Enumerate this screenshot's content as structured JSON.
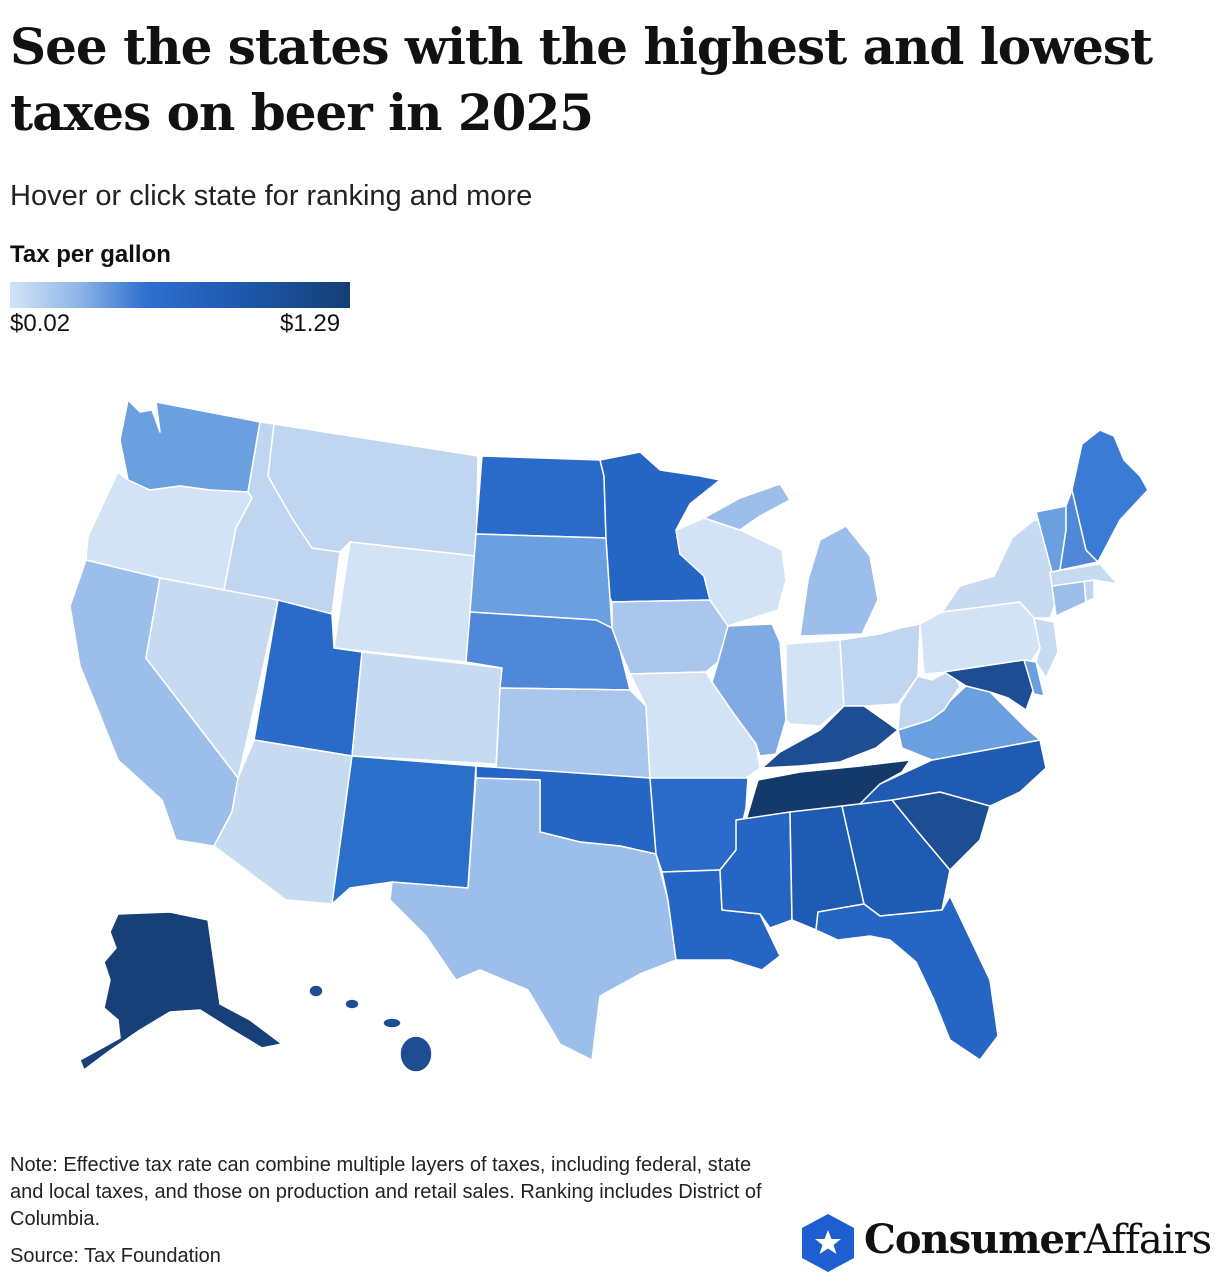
{
  "header": {
    "title": "See the states with the highest and lowest taxes on beer in 2025",
    "subtitle": "Hover or click state for ranking and more"
  },
  "legend": {
    "title": "Tax per gallon",
    "min_label": "$0.02",
    "max_label": "$1.29",
    "colors": [
      "#d3e3f6",
      "#8fb6e8",
      "#2f6fcf",
      "#1f5bb3",
      "#143e74"
    ]
  },
  "states": [
    {
      "id": "WA",
      "color": "#6a9fe0"
    },
    {
      "id": "OR",
      "color": "#d3e3f6"
    },
    {
      "id": "CA",
      "color": "#9cbeea"
    },
    {
      "id": "ID",
      "color": "#bfd5f0"
    },
    {
      "id": "NV",
      "color": "#c6daf2"
    },
    {
      "id": "MT",
      "color": "#bfd5f0"
    },
    {
      "id": "WY",
      "color": "#d3e3f6"
    },
    {
      "id": "UT",
      "color": "#2a6bc9"
    },
    {
      "id": "AZ",
      "color": "#c6daf2"
    },
    {
      "id": "CO",
      "color": "#c6daf2"
    },
    {
      "id": "NM",
      "color": "#2a6fca"
    },
    {
      "id": "ND",
      "color": "#2a6bc9"
    },
    {
      "id": "SD",
      "color": "#6a9fe0"
    },
    {
      "id": "NE",
      "color": "#4f88d8"
    },
    {
      "id": "KS",
      "color": "#a9c7ec"
    },
    {
      "id": "OK",
      "color": "#2566c4"
    },
    {
      "id": "TX",
      "color": "#9cbeea"
    },
    {
      "id": "MN",
      "color": "#2566c4"
    },
    {
      "id": "IA",
      "color": "#a9c7ec"
    },
    {
      "id": "MO",
      "color": "#d3e3f6"
    },
    {
      "id": "AR",
      "color": "#2a6bc9"
    },
    {
      "id": "LA",
      "color": "#2566c4"
    },
    {
      "id": "WI",
      "color": "#d3e3f6"
    },
    {
      "id": "IL",
      "color": "#7faae3"
    },
    {
      "id": "MI",
      "color": "#9cbeea"
    },
    {
      "id": "IN",
      "color": "#d3e3f6"
    },
    {
      "id": "OH",
      "color": "#bfd5f0"
    },
    {
      "id": "KY",
      "color": "#1d4d93"
    },
    {
      "id": "TN",
      "color": "#143a6b"
    },
    {
      "id": "MS",
      "color": "#2566c4"
    },
    {
      "id": "AL",
      "color": "#1f5bb3"
    },
    {
      "id": "GA",
      "color": "#1f5bb3"
    },
    {
      "id": "FL",
      "color": "#2566c4"
    },
    {
      "id": "SC",
      "color": "#1d4d93"
    },
    {
      "id": "NC",
      "color": "#1f5bb3"
    },
    {
      "id": "VA",
      "color": "#6a9fe0"
    },
    {
      "id": "WV",
      "color": "#bfd5f0"
    },
    {
      "id": "PA",
      "color": "#d3e3f6"
    },
    {
      "id": "NY",
      "color": "#c6daf2"
    },
    {
      "id": "MD",
      "color": "#1d4d93"
    },
    {
      "id": "DE",
      "color": "#6a9fe0"
    },
    {
      "id": "NJ",
      "color": "#c6daf2"
    },
    {
      "id": "CT",
      "color": "#9cbeea"
    },
    {
      "id": "RI",
      "color": "#bfd5f0"
    },
    {
      "id": "MA",
      "color": "#c6daf2"
    },
    {
      "id": "VT",
      "color": "#6a9fe0"
    },
    {
      "id": "NH",
      "color": "#4f88d8"
    },
    {
      "id": "ME",
      "color": "#3a7bd5"
    },
    {
      "id": "AK",
      "color": "#173f78"
    },
    {
      "id": "HI",
      "color": "#1d4d93"
    }
  ],
  "footer": {
    "note": "Note: Effective tax rate can combine multiple layers of taxes, including federal, state and local taxes, and those on production and retail sales. Ranking includes District of Columbia.",
    "source": "Source: Tax Foundation",
    "logo_bold": "Consumer",
    "logo_regular": "Affairs",
    "logo_color": "#1d5fd0"
  }
}
